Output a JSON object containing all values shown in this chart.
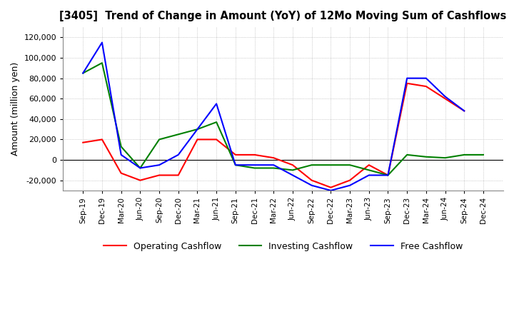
{
  "title": "[3405]  Trend of Change in Amount (YoY) of 12Mo Moving Sum of Cashflows",
  "ylabel": "Amount (million yen)",
  "ylim": [
    -30000,
    130000
  ],
  "yticks": [
    -20000,
    0,
    20000,
    40000,
    60000,
    80000,
    100000,
    120000
  ],
  "x_labels": [
    "Sep-19",
    "Dec-19",
    "Mar-20",
    "Jun-20",
    "Sep-20",
    "Dec-20",
    "Mar-21",
    "Jun-21",
    "Sep-21",
    "Dec-21",
    "Mar-22",
    "Jun-22",
    "Sep-22",
    "Dec-22",
    "Mar-23",
    "Jun-23",
    "Sep-23",
    "Dec-23",
    "Mar-24",
    "Jun-24",
    "Sep-24",
    "Dec-24"
  ],
  "operating": [
    17000,
    20000,
    -13000,
    -20000,
    -15000,
    -15000,
    20000,
    20000,
    5000,
    5000,
    2000,
    -5000,
    -20000,
    -27000,
    -20000,
    -5000,
    -15000,
    75000,
    72000,
    60000,
    48000,
    null
  ],
  "investing": [
    85000,
    95000,
    13000,
    -8000,
    20000,
    25000,
    30000,
    37000,
    -5000,
    -8000,
    -8000,
    -10000,
    -5000,
    -5000,
    -5000,
    -10000,
    -15000,
    5000,
    3000,
    2000,
    5000,
    5000
  ],
  "free": [
    85000,
    115000,
    5000,
    -8000,
    -5000,
    5000,
    30000,
    55000,
    -5000,
    -5000,
    -5000,
    -15000,
    -25000,
    -30000,
    -25000,
    -15000,
    -15000,
    80000,
    80000,
    62000,
    48000,
    null
  ],
  "op_color": "#ff0000",
  "inv_color": "#008000",
  "free_color": "#0000ff",
  "legend_labels": [
    "Operating Cashflow",
    "Investing Cashflow",
    "Free Cashflow"
  ],
  "background_color": "#ffffff",
  "grid_color": "#aaaaaa"
}
